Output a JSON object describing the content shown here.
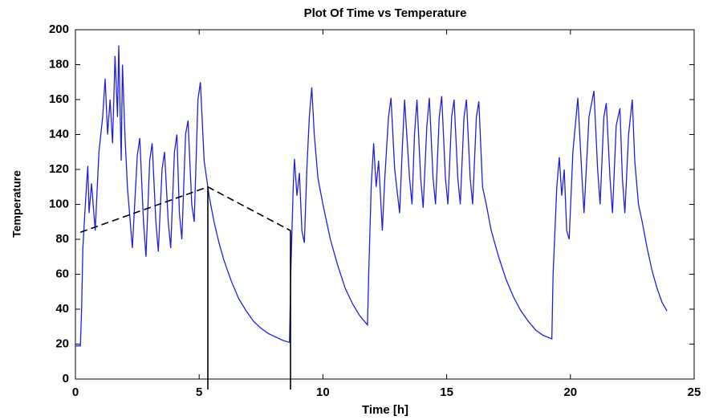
{
  "chart_data": {
    "type": "line",
    "title": "Plot Of Time vs Temperature",
    "x_label": "Time [h]",
    "y_label": "Temperature",
    "color": "#1f1fe0",
    "x": [
      0,
      0.2,
      0.25,
      0.3,
      0.4,
      0.5,
      0.55,
      0.65,
      0.8,
      0.95,
      1.1,
      1.2,
      1.3,
      1.4,
      1.5,
      1.6,
      1.7,
      1.75,
      1.85,
      1.9,
      2.0,
      2.1,
      2.3,
      2.5,
      2.6,
      2.75,
      2.85,
      3.0,
      3.1,
      3.25,
      3.35,
      3.5,
      3.6,
      3.75,
      3.85,
      4.0,
      4.1,
      4.2,
      4.3,
      4.45,
      4.55,
      4.7,
      4.8,
      4.95,
      5.05,
      5.2,
      5.4,
      5.6,
      5.8,
      6.0,
      6.3,
      6.6,
      6.9,
      7.2,
      7.5,
      7.8,
      8.1,
      8.4,
      8.65,
      8.7,
      8.8,
      8.85,
      8.95,
      9.05,
      9.15,
      9.25,
      9.35,
      9.45,
      9.55,
      9.65,
      9.8,
      10.0,
      10.3,
      10.6,
      10.9,
      11.2,
      11.5,
      11.8,
      11.85,
      11.95,
      12.05,
      12.15,
      12.25,
      12.4,
      12.5,
      12.65,
      12.75,
      12.9,
      13.1,
      13.2,
      13.3,
      13.5,
      13.6,
      13.7,
      13.8,
      13.95,
      14.05,
      14.2,
      14.3,
      14.45,
      14.55,
      14.7,
      14.8,
      14.95,
      15.05,
      15.2,
      15.3,
      15.45,
      15.55,
      15.7,
      15.8,
      15.95,
      16.05,
      16.2,
      16.3,
      16.45,
      16.6,
      16.8,
      17.1,
      17.4,
      17.7,
      18.0,
      18.3,
      18.6,
      18.9,
      19.25,
      19.3,
      19.45,
      19.55,
      19.65,
      19.75,
      19.85,
      19.95,
      20.1,
      20.3,
      20.45,
      20.55,
      20.75,
      20.95,
      21.1,
      21.2,
      21.35,
      21.45,
      21.6,
      21.7,
      21.85,
      22.0,
      22.1,
      22.2,
      22.35,
      22.5,
      22.6,
      22.75,
      22.9,
      23.1,
      23.3,
      23.5,
      23.7,
      23.9
    ],
    "values": [
      19,
      19,
      40,
      75,
      100,
      122,
      95,
      112,
      85,
      130,
      150,
      172,
      140,
      160,
      135,
      185,
      150,
      191,
      125,
      180,
      140,
      110,
      75,
      128,
      138,
      90,
      70,
      125,
      135,
      90,
      73,
      120,
      130,
      90,
      75,
      130,
      140,
      95,
      80,
      140,
      148,
      100,
      90,
      160,
      170,
      125,
      105,
      90,
      78,
      68,
      56,
      46,
      39,
      33,
      29,
      26,
      24,
      22,
      21,
      60,
      110,
      126,
      105,
      118,
      85,
      78,
      120,
      150,
      167,
      140,
      115,
      100,
      80,
      65,
      52,
      43,
      36,
      31,
      60,
      110,
      135,
      110,
      125,
      85,
      115,
      150,
      161,
      120,
      95,
      130,
      160,
      115,
      100,
      140,
      160,
      115,
      98,
      145,
      161,
      115,
      100,
      150,
      162,
      115,
      100,
      150,
      160,
      115,
      100,
      150,
      160,
      115,
      100,
      150,
      159,
      110,
      100,
      85,
      70,
      57,
      47,
      39,
      33,
      28,
      25,
      23,
      60,
      110,
      127,
      105,
      120,
      85,
      80,
      130,
      161,
      120,
      95,
      150,
      165,
      120,
      100,
      150,
      158,
      115,
      95,
      145,
      155,
      115,
      95,
      140,
      160,
      125,
      100,
      90,
      75,
      62,
      52,
      44,
      39
    ],
    "overlays": [
      {
        "x": [
          0.2,
          5.35,
          8.69
        ],
        "y": [
          84,
          110,
          85
        ],
        "color": "#000000",
        "dashed": true
      },
      {
        "x": [
          5.35,
          5.35
        ],
        "y": [
          110,
          -6
        ],
        "color": "#000000",
        "dashed": false
      },
      {
        "x": [
          8.69,
          8.69
        ],
        "y": [
          85,
          -6
        ],
        "color": "#000000",
        "dashed": false
      }
    ],
    "xlim": [
      0,
      25
    ],
    "xticks": [
      0,
      5,
      10,
      15,
      20,
      25
    ],
    "ylim": [
      0,
      200
    ],
    "yticks": [
      0,
      20,
      40,
      60,
      80,
      100,
      120,
      140,
      160,
      180,
      200
    ],
    "grid": false
  }
}
